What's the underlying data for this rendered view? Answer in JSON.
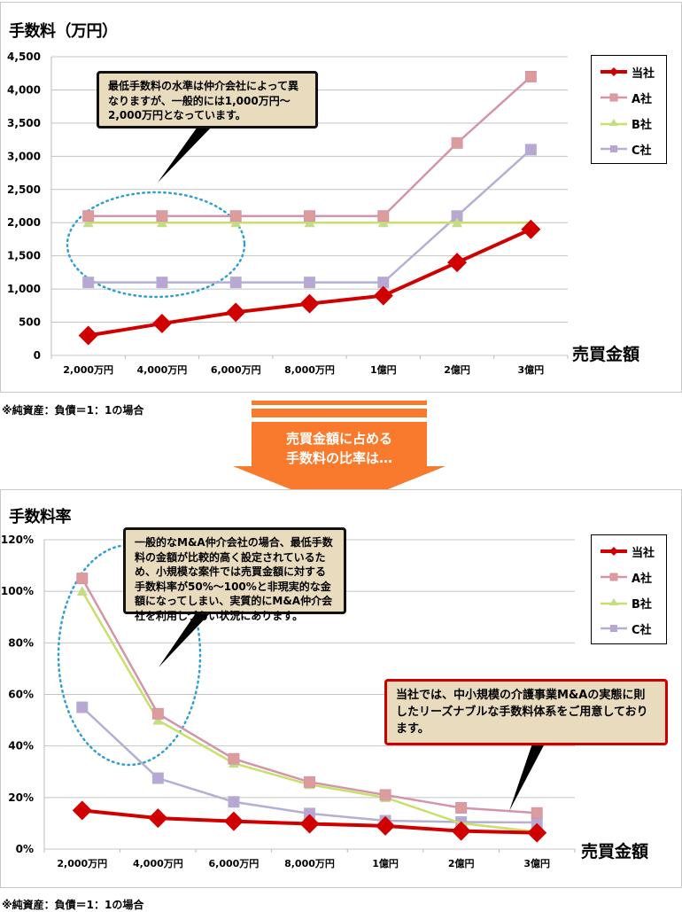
{
  "top_chart": {
    "title": "手数料（万円）",
    "x_axis_title": "売買金額",
    "note": "※純資産：負債＝1：1の場合",
    "callout": "最低手数料の水準は仲介会社によって異なりますが、一般的には1,000万円～2,000万円となっています。",
    "y_ticks": [
      "0",
      "500",
      "1,000",
      "1,500",
      "2,000",
      "2,500",
      "3,000",
      "3,500",
      "4,000",
      "4,500"
    ]
  },
  "arrow": {
    "line1": "売買金額に占める",
    "line2": "手数料の比率は…",
    "color": "#f97a2c"
  },
  "bottom_chart": {
    "title": "手数料率",
    "x_axis_title": "売買金額",
    "note": "※純資産：負債＝1：1の場合",
    "callout": "一般的なM&A仲介会社の場合、最低手数料の金額が比較的高く設定されているため、小規模な案件では売買金額に対する手数料率が50%～100%と非現実的な金額になってしまい、実質的にM&A仲介会社を利用しづらい状況にあります。",
    "callout_red": "当社では、中小規模の介護事業M&Aの実態に則したリーズナブルな手数料体系をご用意しております。",
    "y_ticks": [
      "0%",
      "20%",
      "40%",
      "60%",
      "80%",
      "100%",
      "120%"
    ]
  },
  "legend": [
    {
      "label": "当社",
      "color": "#d00000",
      "marker": "diamond"
    },
    {
      "label": "A社",
      "color": "#d495aa",
      "marker": "square",
      "fill": "#dd9c9c"
    },
    {
      "label": "B社",
      "color": "#c8e06a",
      "marker": "triangle",
      "fill": "#c3dd86"
    },
    {
      "label": "C社",
      "color": "#b3b0d3",
      "marker": "square",
      "fill": "#b8a7d2"
    }
  ],
  "chart_data": [
    {
      "type": "line",
      "title": "手数料（万円）",
      "xlabel": "売買金額",
      "ylabel": "手数料（万円）",
      "ylim": [
        0,
        4500
      ],
      "grid": true,
      "legend_position": "right",
      "categories": [
        "2,000万円",
        "4,000万円",
        "6,000万円",
        "8,000万円",
        "1億円",
        "2億円",
        "3億円"
      ],
      "series": [
        {
          "name": "当社",
          "values": [
            300,
            480,
            650,
            780,
            900,
            1400,
            1900
          ]
        },
        {
          "name": "A社",
          "values": [
            2100,
            2100,
            2100,
            2100,
            2100,
            3200,
            4200
          ]
        },
        {
          "name": "B社",
          "values": [
            2000,
            2000,
            2000,
            2000,
            2000,
            2000,
            2000
          ]
        },
        {
          "name": "C社",
          "values": [
            1100,
            1100,
            1100,
            1100,
            1100,
            2100,
            3100
          ]
        }
      ],
      "annotations": [
        "最低手数料の水準は仲介会社によって異なりますが、一般的には1,000万円～2,000万円となっています。"
      ]
    },
    {
      "type": "line",
      "title": "手数料率",
      "xlabel": "売買金額",
      "ylabel": "手数料率",
      "ylim": [
        0,
        120
      ],
      "grid": true,
      "legend_position": "right",
      "categories": [
        "2,000万円",
        "4,000万円",
        "6,000万円",
        "8,000万円",
        "1億円",
        "2億円",
        "3億円"
      ],
      "series": [
        {
          "name": "当社",
          "values": [
            15,
            12,
            10.8,
            9.8,
            9,
            7,
            6.3
          ]
        },
        {
          "name": "A社",
          "values": [
            105,
            52.5,
            35,
            26,
            21,
            16,
            14
          ]
        },
        {
          "name": "B社",
          "values": [
            100,
            50,
            33.3,
            25,
            20,
            10,
            6.7
          ]
        },
        {
          "name": "C社",
          "values": [
            55,
            27.5,
            18.3,
            13.8,
            11,
            10.5,
            10.3
          ]
        }
      ],
      "annotations": [
        "一般的なM&A仲介会社の場合、最低手数料の金額が比較的高く設定されているため、小規模な案件では売買金額に対する手数料率が50%～100%と非現実的な金額になってしまい、実質的にM&A仲介会社を利用しづらい状況にあります。",
        "当社では、中小規模の介護事業M&Aの実態に則したリーズナブルな手数料体系をご用意しております。"
      ]
    }
  ]
}
